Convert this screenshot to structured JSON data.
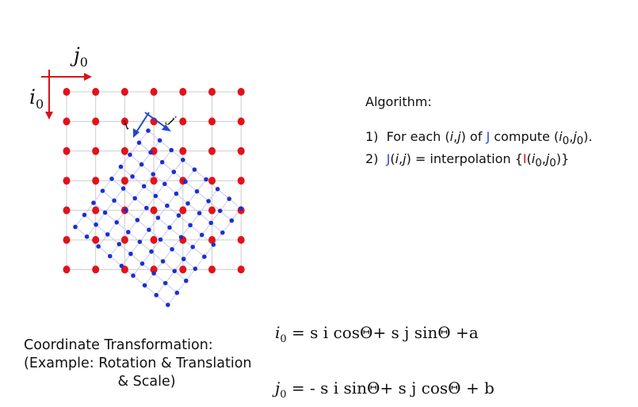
{
  "diagram": {
    "axis_i_label": "i",
    "axis_i_sub": "0",
    "axis_j_label": "j",
    "axis_j_sub": "0",
    "small_axis_i": "i",
    "small_axis_j": "j",
    "colors": {
      "source_grid": "#e2121b",
      "target_grid": "#1d2fd0",
      "grid_line": "#cccccc",
      "axes": "#d8141a",
      "small_axes": "#2346cc"
    }
  },
  "algorithm": {
    "title": "Algorithm:",
    "step1": {
      "n": "1)",
      "a": "For each (",
      "i": "i",
      "comma": ",",
      "j": "j",
      "b": ") of ",
      "J": "J",
      "c": " compute (",
      "i0": "i",
      "s0": "0",
      "comma2": ",",
      "j0": "j",
      "s1": "0",
      "d": ")."
    },
    "step2": {
      "n": "2)",
      "J": "J",
      "a": "(",
      "i": "i",
      "comma": ",",
      "j": "j",
      "b": ") = interpolation {",
      "I": "I",
      "c": "(",
      "i0": "i",
      "s0": "0",
      "comma2": ",",
      "j0": "j",
      "s1": "0",
      "d": ")}"
    }
  },
  "coordinate": {
    "line1": "Coordinate Transformation:",
    "line2": "(Example: Rotation & Translation",
    "line3": "& Scale)"
  },
  "equations": {
    "eq1": {
      "lhs": "i",
      "lhs_sub": "0",
      "rest": " =  s i cosΘ+ s j sinΘ +a"
    },
    "eq2": {
      "lhs": "j",
      "lhs_sub": "0",
      "rest": " =  - s i sinΘ+ s j cosΘ + b"
    }
  }
}
